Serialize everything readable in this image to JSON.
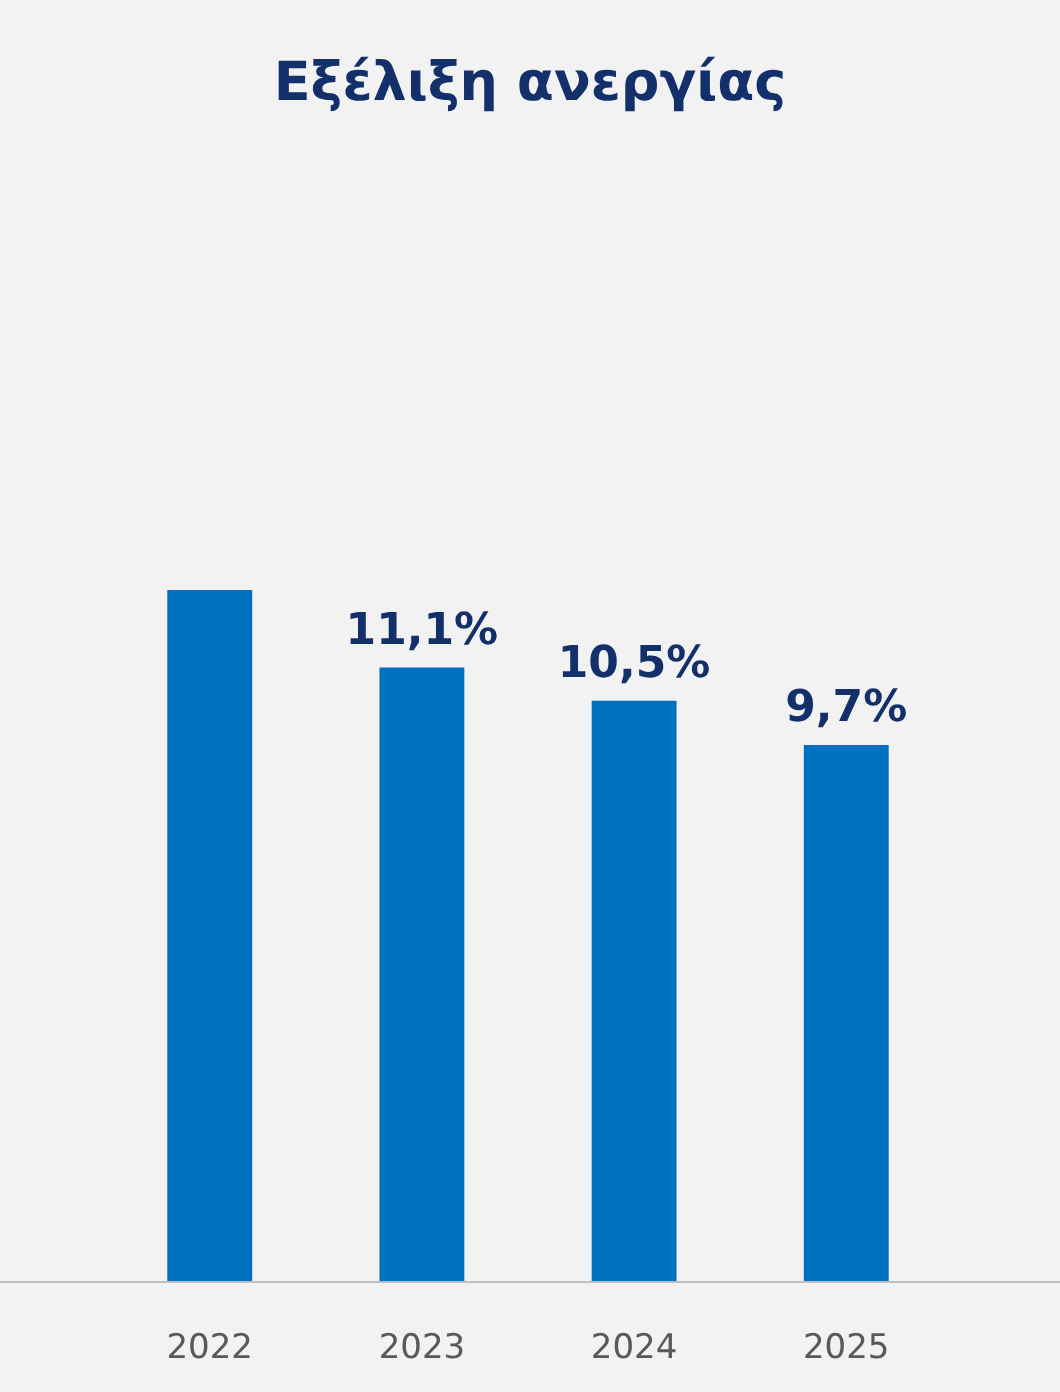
{
  "chart_data": {
    "type": "bar",
    "title": "Εξέλιξη ανεργίας",
    "categories": [
      "2022",
      "2023",
      "2024",
      "2025"
    ],
    "values": [
      12.5,
      11.1,
      10.5,
      9.7
    ],
    "value_labels": [
      null,
      "11,1%",
      "10,5%",
      "9,7%"
    ],
    "color": "#0070c0"
  }
}
